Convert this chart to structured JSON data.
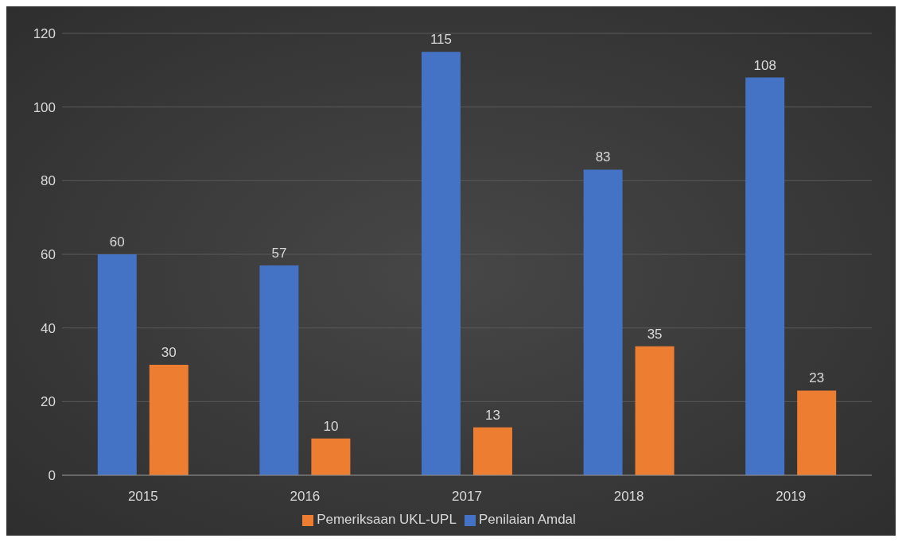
{
  "chart_data": {
    "type": "bar",
    "categories": [
      "2015",
      "2016",
      "2017",
      "2018",
      "2019"
    ],
    "series": [
      {
        "name": "Penilaian Amdal",
        "color": "#4472c4",
        "values": [
          60,
          57,
          115,
          83,
          108
        ]
      },
      {
        "name": "Pemeriksaan UKL-UPL",
        "color": "#ed7d31",
        "values": [
          30,
          10,
          13,
          35,
          23
        ]
      }
    ],
    "ylim": [
      0,
      120
    ],
    "yticks": [
      0,
      20,
      40,
      60,
      80,
      100,
      120
    ],
    "grid": "y",
    "legend": "bottom",
    "data_labels": true
  }
}
